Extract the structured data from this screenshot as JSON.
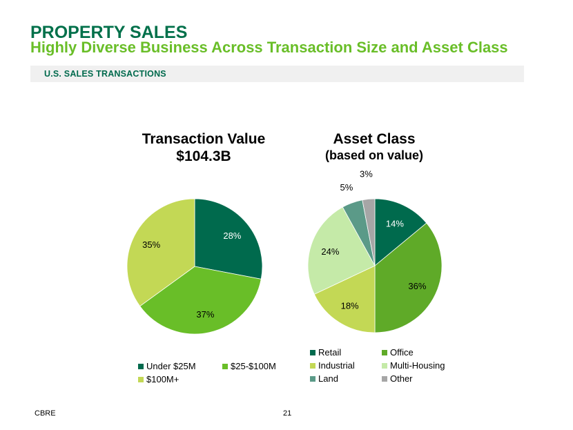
{
  "header": {
    "title": "PROPERTY SALES",
    "subtitle": "Highly Diverse Business Across Transaction Size and Asset Class"
  },
  "section": {
    "label": "U.S. SALES TRANSACTIONS"
  },
  "footer": {
    "brand": "CBRE",
    "page": "21"
  },
  "chart_data": [
    {
      "type": "pie",
      "title": "Transaction Value",
      "subtitle": "$104.3B",
      "legend_position": "bottom",
      "slices": [
        {
          "label": "Under $25M",
          "value": 28,
          "display": "28%",
          "color": "#006a4d",
          "label_color": "#ffffff"
        },
        {
          "label": "$25-$100M",
          "value": 37,
          "display": "37%",
          "color": "#69be28",
          "label_color": "#000000"
        },
        {
          "label": "$100M+",
          "value": 35,
          "display": "35%",
          "color": "#c3d855",
          "label_color": "#000000"
        }
      ]
    },
    {
      "type": "pie",
      "title": "Asset Class",
      "subtitle": "(based on value)",
      "legend_position": "bottom",
      "slices": [
        {
          "label": "Retail",
          "value": 14,
          "display": "14%",
          "color": "#006a4d",
          "label_color": "#ffffff"
        },
        {
          "label": "Office",
          "value": 36,
          "display": "36%",
          "color": "#5faa28",
          "label_color": "#000000"
        },
        {
          "label": "Industrial",
          "value": 18,
          "display": "18%",
          "color": "#c3d855",
          "label_color": "#000000"
        },
        {
          "label": "Multi-Housing",
          "value": 24,
          "display": "24%",
          "color": "#c5eaa8",
          "label_color": "#000000"
        },
        {
          "label": "Land",
          "value": 5,
          "display": "5%",
          "color": "#5b9a88",
          "label_color": "#000000"
        },
        {
          "label": "Other",
          "value": 3,
          "display": "3%",
          "color": "#a6a6a6",
          "label_color": "#000000"
        }
      ]
    }
  ]
}
